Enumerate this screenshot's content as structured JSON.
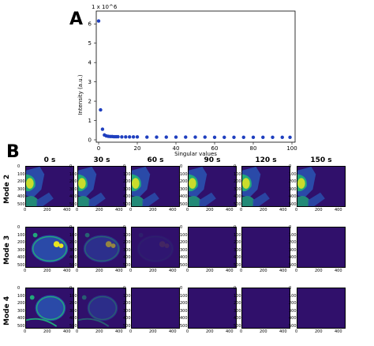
{
  "panelA": {
    "letter": "A"
  },
  "panelB": {
    "letter": "B"
  },
  "chart_data": {
    "type": "scatter",
    "xlabel": "Singular values",
    "ylabel": "Intensity (a.u.)",
    "yscale_note": "1 x 10^6",
    "xlim": [
      0,
      100
    ],
    "ylim": [
      0,
      6.5
    ],
    "xticks": [
      "0",
      "20",
      "40",
      "60",
      "80",
      "100"
    ],
    "yticks": [
      "0",
      "1",
      "2",
      "3",
      "4",
      "5",
      "6"
    ],
    "x": [
      0,
      1,
      2,
      3,
      4,
      5,
      6,
      7,
      8,
      9,
      10,
      12,
      14,
      16,
      18,
      20,
      25,
      30,
      35,
      40,
      45,
      50,
      55,
      60,
      65,
      70,
      75,
      80,
      85,
      90,
      95,
      99
    ],
    "y": [
      6.15,
      1.55,
      0.55,
      0.25,
      0.2,
      0.18,
      0.17,
      0.17,
      0.16,
      0.16,
      0.16,
      0.15,
      0.15,
      0.15,
      0.15,
      0.15,
      0.14,
      0.14,
      0.14,
      0.14,
      0.14,
      0.14,
      0.14,
      0.13,
      0.13,
      0.13,
      0.13,
      0.13,
      0.13,
      0.13,
      0.13,
      0.13
    ],
    "color": "#1f3fbf"
  },
  "grid": {
    "columns": [
      "0 s",
      "30 s",
      "60 s",
      "90 s",
      "120 s",
      "150 s"
    ],
    "rows": [
      "Mode 2",
      "Mode 3",
      "Mode 4"
    ],
    "ticks_x": [
      "0",
      "200",
      "400"
    ],
    "ticks_y": [
      "0",
      "100",
      "200",
      "300",
      "400",
      "500"
    ]
  },
  "colors": {
    "dark": "#30106b",
    "mid": "#2a4aa8",
    "green": "#21a97a",
    "yellow": "#e7e51f"
  }
}
